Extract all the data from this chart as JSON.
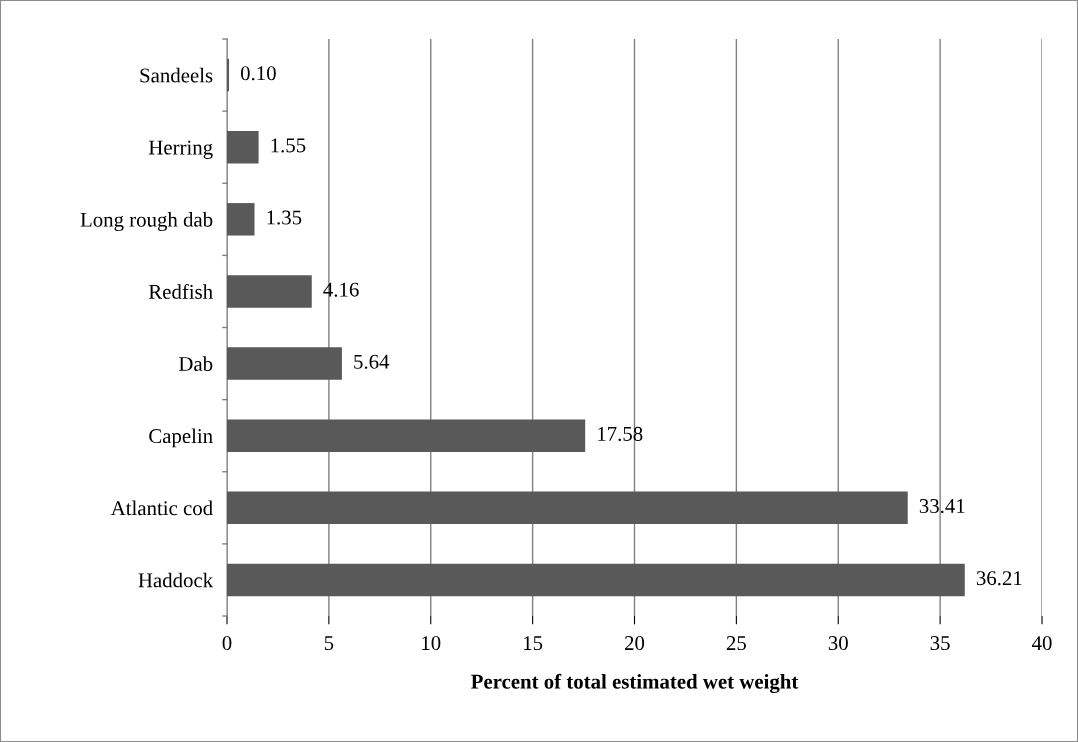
{
  "chart_data": {
    "type": "bar",
    "orientation": "horizontal",
    "xlabel": "Percent of total estimated wet weight",
    "categories": [
      "Sandeels",
      "Herring",
      "Long rough dab",
      "Redfish",
      "Dab",
      "Capelin",
      "Atlantic cod",
      "Haddock"
    ],
    "values": [
      0.1,
      1.55,
      1.35,
      4.16,
      5.64,
      17.58,
      33.41,
      36.21
    ],
    "value_labels": [
      "0.10",
      "1.55",
      "1.35",
      "4.16",
      "5.64",
      "17.58",
      "33.41",
      "36.21"
    ],
    "color": "#595959",
    "xlim": [
      0,
      40
    ],
    "xticks": [
      0,
      5,
      10,
      15,
      20,
      25,
      30,
      35,
      40
    ],
    "grid": "x"
  }
}
